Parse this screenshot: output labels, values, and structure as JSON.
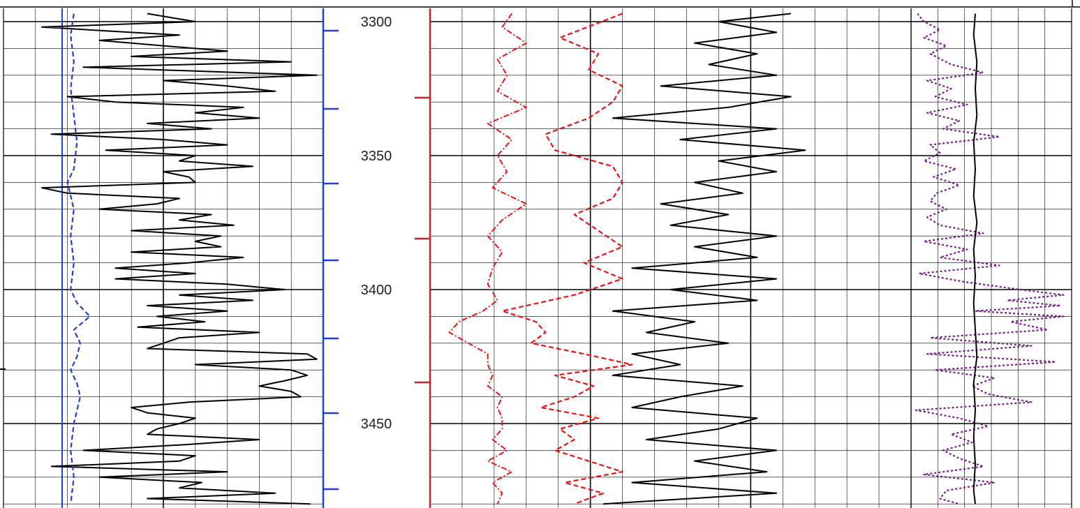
{
  "colors": {
    "background": "#ffffff",
    "grid": "#000000",
    "track1_curve": "#000000",
    "track1_dashed": "#1f3fd6",
    "track1_axis": "#1f3fd6",
    "track3_axis": "#c0272d",
    "track3_dashdot": "#ee1111",
    "track3_dashed": "#ee1111",
    "track3_solid": "#000000",
    "track4_dotted": "#7a1a8c",
    "track4_solid": "#000000"
  },
  "chart_data": {
    "type": "line",
    "title": "",
    "xlabel": "",
    "ylabel": "",
    "depth_range": [
      3297,
      3480
    ],
    "depth_ticks": [
      "3300",
      "3350",
      "3400",
      "3450"
    ],
    "grid": true,
    "tracks": [
      {
        "name": "",
        "x_range": [
          0,
          100
        ],
        "series": [
          {
            "name": "",
            "style": "solid",
            "color_key": "track1_curve",
            "depth": [
              3297,
              3300,
              3302,
              3304,
              3305,
              3307,
              3309,
              3311,
              3313,
              3315,
              3317,
              3320,
              3322,
              3324,
              3326,
              3328,
              3330,
              3332,
              3334,
              3336,
              3338,
              3340,
              3342,
              3344,
              3346,
              3348,
              3350,
              3352,
              3354,
              3356,
              3358,
              3360,
              3362,
              3364,
              3366,
              3368,
              3370,
              3372,
              3374,
              3376,
              3378,
              3380,
              3382,
              3384,
              3386,
              3388,
              3390,
              3392,
              3394,
              3396,
              3398,
              3400,
              3402,
              3404,
              3406,
              3408,
              3410,
              3412,
              3414,
              3416,
              3418,
              3420,
              3422,
              3424,
              3426,
              3428,
              3430,
              3432,
              3434,
              3436,
              3438,
              3440,
              3442,
              3444,
              3446,
              3448,
              3450,
              3452,
              3454,
              3456,
              3458,
              3460,
              3462,
              3464,
              3466,
              3468,
              3470,
              3472,
              3474,
              3476,
              3478,
              3480
            ],
            "values": [
              45,
              60,
              12,
              40,
              55,
              30,
              50,
              70,
              40,
              90,
              25,
              98,
              50,
              70,
              85,
              20,
              35,
              75,
              60,
              80,
              45,
              65,
              15,
              50,
              70,
              32,
              60,
              55,
              78,
              50,
              58,
              60,
              12,
              20,
              55,
              48,
              30,
              65,
              55,
              72,
              40,
              68,
              60,
              68,
              40,
              75,
              58,
              35,
              60,
              35,
              70,
              88,
              55,
              78,
              45,
              70,
              48,
              63,
              42,
              80,
              55,
              50,
              45,
              95,
              98,
              60,
              90,
              95,
              88,
              80,
              90,
              93,
              58,
              40,
              45,
              60,
              55,
              48,
              45,
              80,
              55,
              25,
              60,
              55,
              15,
              70,
              30,
              62,
              55,
              85,
              45,
              96
            ]
          },
          {
            "name": "",
            "style": "dashed",
            "color_key": "track1_dashed",
            "depth": [
              3297,
              3305,
              3315,
              3325,
              3335,
              3345,
              3355,
              3360,
              3370,
              3380,
              3390,
              3400,
              3405,
              3410,
              3415,
              3420,
              3425,
              3430,
              3435,
              3440,
              3450,
              3460,
              3470,
              3480
            ],
            "values": [
              22,
              21,
              22,
              21,
              22,
              23,
              22,
              20,
              22,
              21,
              22,
              21,
              23,
              27,
              22,
              24,
              23,
              21,
              23,
              24,
              22,
              21,
              22,
              21
            ]
          }
        ]
      },
      {
        "name": "",
        "x_range": [
          0,
          100
        ],
        "series": [
          {
            "name": "",
            "style": "dashdot",
            "color_key": "track3_dashdot",
            "depth": [
              3297,
              3302,
              3308,
              3314,
              3320,
              3326,
              3332,
              3338,
              3344,
              3350,
              3356,
              3362,
              3368,
              3374,
              3380,
              3386,
              3392,
              3398,
              3404,
              3408,
              3412,
              3416,
              3420,
              3424,
              3428,
              3432,
              3436,
              3440,
              3444,
              3448,
              3452,
              3456,
              3460,
              3464,
              3468,
              3472,
              3476,
              3480
            ],
            "values": [
              17,
              15,
              20,
              14,
              16,
              14,
              20,
              12,
              17,
              14,
              16,
              13,
              20,
              15,
              12,
              15,
              13,
              12,
              14,
              11,
              6,
              4,
              8,
              12,
              12,
              13,
              12,
              15,
              14,
              15,
              15,
              13,
              16,
              12,
              17,
              13,
              15,
              14
            ]
          },
          {
            "name": "",
            "style": "dashed",
            "color_key": "track3_dashed",
            "depth": [
              3297,
              3306,
              3312,
              3318,
              3324,
              3330,
              3336,
              3342,
              3348,
              3354,
              3360,
              3366,
              3372,
              3378,
              3384,
              3390,
              3396,
              3402,
              3408,
              3412,
              3416,
              3420,
              3424,
              3428,
              3432,
              3436,
              3440,
              3444,
              3448,
              3452,
              3456,
              3460,
              3464,
              3468,
              3472,
              3476,
              3480
            ],
            "values": [
              40,
              27,
              35,
              33,
              40,
              38,
              33,
              24,
              26,
              38,
              40,
              38,
              30,
              35,
              40,
              32,
              40,
              30,
              15,
              22,
              24,
              21,
              32,
              42,
              26,
              34,
              30,
              23,
              35,
              27,
              30,
              26,
              33,
              40,
              28,
              36,
              30
            ]
          },
          {
            "name": "",
            "style": "solid",
            "color_key": "track3_solid",
            "depth": [
              3297,
              3300,
              3304,
              3308,
              3312,
              3316,
              3320,
              3324,
              3328,
              3332,
              3336,
              3340,
              3344,
              3348,
              3352,
              3356,
              3360,
              3364,
              3368,
              3372,
              3376,
              3380,
              3384,
              3388,
              3392,
              3396,
              3400,
              3404,
              3408,
              3412,
              3416,
              3420,
              3424,
              3428,
              3432,
              3436,
              3440,
              3444,
              3448,
              3452,
              3456,
              3460,
              3464,
              3468,
              3472,
              3476,
              3480
            ],
            "values": [
              75,
              60,
              72,
              55,
              68,
              58,
              72,
              48,
              75,
              62,
              38,
              72,
              52,
              78,
              60,
              72,
              55,
              65,
              48,
              62,
              50,
              72,
              55,
              68,
              42,
              72,
              50,
              68,
              38,
              55,
              45,
              62,
              42,
              52,
              38,
              65,
              52,
              42,
              68,
              60,
              45,
              72,
              55,
              70,
              42,
              72,
              36
            ]
          }
        ]
      },
      {
        "name": "",
        "x_range": [
          0,
          100
        ],
        "series": [
          {
            "name": "",
            "style": "dotted",
            "color_key": "track4_dotted",
            "depth": [
              3297,
              3300,
              3303,
              3306,
              3309,
              3312,
              3316,
              3319,
              3322,
              3325,
              3328,
              3331,
              3334,
              3337,
              3340,
              3343,
              3346,
              3349,
              3352,
              3355,
              3358,
              3361,
              3364,
              3367,
              3370,
              3373,
              3376,
              3379,
              3382,
              3385,
              3388,
              3391,
              3394,
              3397,
              3400,
              3402,
              3404,
              3406,
              3408,
              3410,
              3412,
              3415,
              3418,
              3421,
              3424,
              3427,
              3430,
              3433,
              3436,
              3439,
              3442,
              3445,
              3448,
              3451,
              3454,
              3457,
              3460,
              3463,
              3466,
              3469,
              3472,
              3475,
              3478,
              3480
            ],
            "values": [
              4,
              8,
              18,
              8,
              22,
              12,
              25,
              45,
              10,
              25,
              15,
              35,
              10,
              30,
              20,
              55,
              12,
              18,
              8,
              28,
              14,
              30,
              16,
              12,
              22,
              10,
              18,
              45,
              8,
              35,
              18,
              55,
              5,
              32,
              68,
              95,
              60,
              93,
              40,
              95,
              62,
              85,
              12,
              75,
              10,
              90,
              15,
              52,
              38,
              48,
              75,
              3,
              30,
              48,
              25,
              38,
              20,
              30,
              45,
              8,
              52,
              22,
              18,
              30
            ]
          },
          {
            "name": "",
            "style": "solid",
            "color_key": "track4_solid",
            "depth": [
              3297,
              3305,
              3315,
              3325,
              3335,
              3345,
              3355,
              3365,
              3375,
              3385,
              3395,
              3405,
              3415,
              3425,
              3435,
              3445,
              3455,
              3465,
              3475,
              3480
            ],
            "values": [
              40,
              39,
              41,
              40,
              41,
              39,
              40,
              39,
              41,
              39,
              40,
              39,
              40,
              41,
              39,
              40,
              39,
              40,
              39,
              40
            ]
          }
        ]
      }
    ]
  }
}
